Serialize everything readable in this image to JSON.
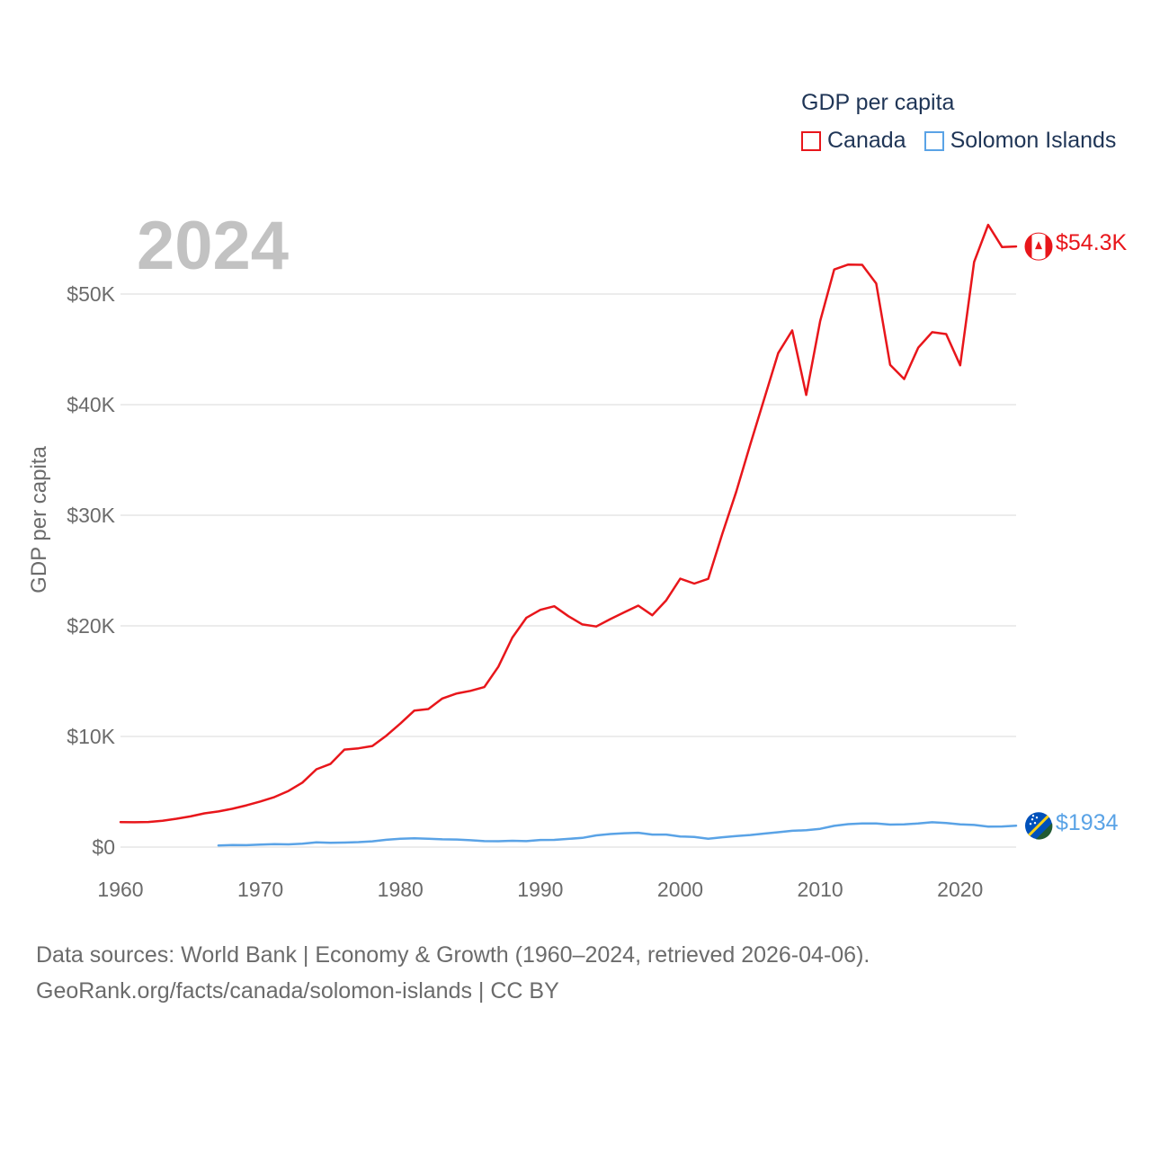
{
  "legend": {
    "title": "GDP per capita",
    "items": [
      {
        "label": "Canada",
        "color": "#e8161b"
      },
      {
        "label": "Solomon Islands",
        "color": "#5aa3e6"
      }
    ]
  },
  "year_label": "2024",
  "end_labels": {
    "canada": "$54.3K",
    "solomon": "$1934"
  },
  "footer": {
    "line1": "Data sources: World Bank | Economy & Growth (1960–2024, retrieved 2026-04-06).",
    "line2": "GeoRank.org/facts/canada/solomon-islands | CC BY"
  },
  "chart_data": {
    "type": "line",
    "title": "GDP per capita",
    "xlabel": "",
    "ylabel": "GDP per capita",
    "xlim": [
      1960,
      2024
    ],
    "ylim": [
      0,
      57000
    ],
    "x_ticks": [
      1960,
      1970,
      1980,
      1990,
      2000,
      2010,
      2020
    ],
    "y_ticks": [
      0,
      10000,
      20000,
      30000,
      40000,
      50000
    ],
    "y_tick_labels": [
      "$0",
      "$10K",
      "$20K",
      "$30K",
      "$40K",
      "$50K"
    ],
    "series": [
      {
        "name": "Canada",
        "color": "#e8161b",
        "x": [
          1960,
          1961,
          1962,
          1963,
          1964,
          1965,
          1966,
          1967,
          1968,
          1969,
          1970,
          1971,
          1972,
          1973,
          1974,
          1975,
          1976,
          1977,
          1978,
          1979,
          1980,
          1981,
          1982,
          1983,
          1984,
          1985,
          1986,
          1987,
          1988,
          1989,
          1990,
          1991,
          1992,
          1993,
          1994,
          1995,
          1996,
          1997,
          1998,
          1999,
          2000,
          2001,
          2002,
          2003,
          2004,
          2005,
          2006,
          2007,
          2008,
          2009,
          2010,
          2011,
          2012,
          2013,
          2014,
          2015,
          2016,
          2017,
          2018,
          2019,
          2020,
          2021,
          2022,
          2023,
          2024
        ],
        "values": [
          2260,
          2240,
          2270,
          2380,
          2560,
          2770,
          3050,
          3220,
          3460,
          3770,
          4120,
          4520,
          5070,
          5830,
          7030,
          7510,
          8810,
          8930,
          9140,
          10070,
          11170,
          12340,
          12480,
          13430,
          13880,
          14120,
          14460,
          16310,
          18940,
          20720,
          21450,
          21770,
          20880,
          20130,
          19940,
          20610,
          21230,
          21830,
          20960,
          22310,
          24270,
          23820,
          24250,
          28300,
          32140,
          36380,
          40530,
          44660,
          46710,
          40880,
          47560,
          52220,
          52670,
          52640,
          50960,
          43600,
          42320,
          45150,
          46550,
          46380,
          43560,
          52900,
          56260,
          54240,
          54300
        ]
      },
      {
        "name": "Solomon Islands",
        "color": "#5aa3e6",
        "x": [
          1967,
          1968,
          1969,
          1970,
          1971,
          1972,
          1973,
          1974,
          1975,
          1976,
          1977,
          1978,
          1979,
          1980,
          1981,
          1982,
          1983,
          1984,
          1985,
          1986,
          1987,
          1988,
          1989,
          1990,
          1991,
          1992,
          1993,
          1994,
          1995,
          1996,
          1997,
          1998,
          1999,
          2000,
          2001,
          2002,
          2003,
          2004,
          2005,
          2006,
          2007,
          2008,
          2009,
          2010,
          2011,
          2012,
          2013,
          2014,
          2015,
          2016,
          2017,
          2018,
          2019,
          2020,
          2021,
          2022,
          2023,
          2024
        ],
        "values": [
          150,
          180,
          170,
          220,
          260,
          240,
          300,
          420,
          390,
          410,
          450,
          520,
          660,
          760,
          790,
          760,
          700,
          680,
          620,
          540,
          530,
          570,
          540,
          640,
          650,
          740,
          830,
          1060,
          1180,
          1250,
          1290,
          1130,
          1130,
          960,
          920,
          760,
          890,
          990,
          1090,
          1220,
          1340,
          1470,
          1520,
          1650,
          1920,
          2070,
          2140,
          2130,
          2030,
          2060,
          2130,
          2240,
          2180,
          2050,
          2000,
          1850,
          1860,
          1934
        ]
      }
    ]
  }
}
